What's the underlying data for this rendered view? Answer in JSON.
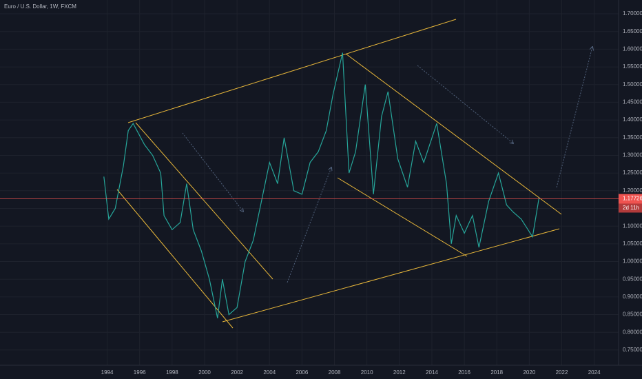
{
  "chart_data": {
    "type": "line",
    "title": "Euro / U.S. Dollar, 1W, FXCM",
    "x": [
      1993.8,
      1994.1,
      1994.5,
      1995.0,
      1995.3,
      1995.6,
      1996.3,
      1996.8,
      1997.3,
      1997.5,
      1998.0,
      1998.5,
      1998.9,
      1999.3,
      1999.8,
      2000.3,
      2000.8,
      2001.1,
      2001.5,
      2002.0,
      2002.5,
      2003.0,
      2003.5,
      2004.0,
      2004.5,
      2004.9,
      2005.5,
      2006.0,
      2006.5,
      2007.0,
      2007.5,
      2007.9,
      2008.5,
      2008.9,
      2009.3,
      2009.9,
      2010.4,
      2010.9,
      2011.3,
      2011.9,
      2012.5,
      2013.0,
      2013.5,
      2014.3,
      2014.9,
      2015.2,
      2015.5,
      2016.0,
      2016.5,
      2016.9,
      2017.5,
      2018.1,
      2018.6,
      2019.0,
      2019.5,
      2020.2,
      2020.6
    ],
    "values": [
      1.24,
      1.12,
      1.15,
      1.27,
      1.37,
      1.39,
      1.33,
      1.3,
      1.25,
      1.13,
      1.09,
      1.11,
      1.22,
      1.09,
      1.03,
      0.95,
      0.84,
      0.95,
      0.85,
      0.87,
      1.0,
      1.06,
      1.17,
      1.28,
      1.22,
      1.35,
      1.2,
      1.19,
      1.28,
      1.31,
      1.37,
      1.47,
      1.59,
      1.25,
      1.31,
      1.5,
      1.19,
      1.41,
      1.48,
      1.29,
      1.21,
      1.34,
      1.28,
      1.39,
      1.22,
      1.05,
      1.13,
      1.08,
      1.13,
      1.04,
      1.17,
      1.25,
      1.16,
      1.14,
      1.12,
      1.07,
      1.18
    ],
    "color": "#26a69a",
    "last_price": 1.17726,
    "countdown": "2d 11h",
    "xlim": [
      1987.4,
      2025.5
    ],
    "ylim": [
      0.707,
      1.739
    ],
    "xticks": [
      1994,
      1996,
      1998,
      2000,
      2002,
      2004,
      2006,
      2008,
      2010,
      2012,
      2014,
      2016,
      2018,
      2020,
      2022,
      2024
    ],
    "yticks": [
      {
        "value": 0.75,
        "label": "0.75000"
      },
      {
        "value": 0.8,
        "label": "0.80000"
      },
      {
        "value": 0.85,
        "label": "0.85000"
      },
      {
        "value": 0.9,
        "label": "0.90000"
      },
      {
        "value": 0.95,
        "label": "0.95000"
      },
      {
        "value": 1.0,
        "label": "1.00000"
      },
      {
        "value": 1.05,
        "label": "1.05000"
      },
      {
        "value": 1.1,
        "label": "1.10000"
      },
      {
        "value": 1.15,
        "label": "1.15000"
      },
      {
        "value": 1.2,
        "label": "1.20000"
      },
      {
        "value": 1.25,
        "label": "1.25000"
      },
      {
        "value": 1.3,
        "label": "1.30000"
      },
      {
        "value": 1.35,
        "label": "1.35000"
      },
      {
        "value": 1.4,
        "label": "1.40000"
      },
      {
        "value": 1.45,
        "label": "1.45000"
      },
      {
        "value": 1.5,
        "label": "1.50000"
      },
      {
        "value": 1.55,
        "label": "1.55000"
      },
      {
        "value": 1.6,
        "label": "1.60000"
      },
      {
        "value": 1.65,
        "label": "1.65000"
      },
      {
        "value": 1.7,
        "label": "1.70000"
      }
    ],
    "grid": true
  }
}
